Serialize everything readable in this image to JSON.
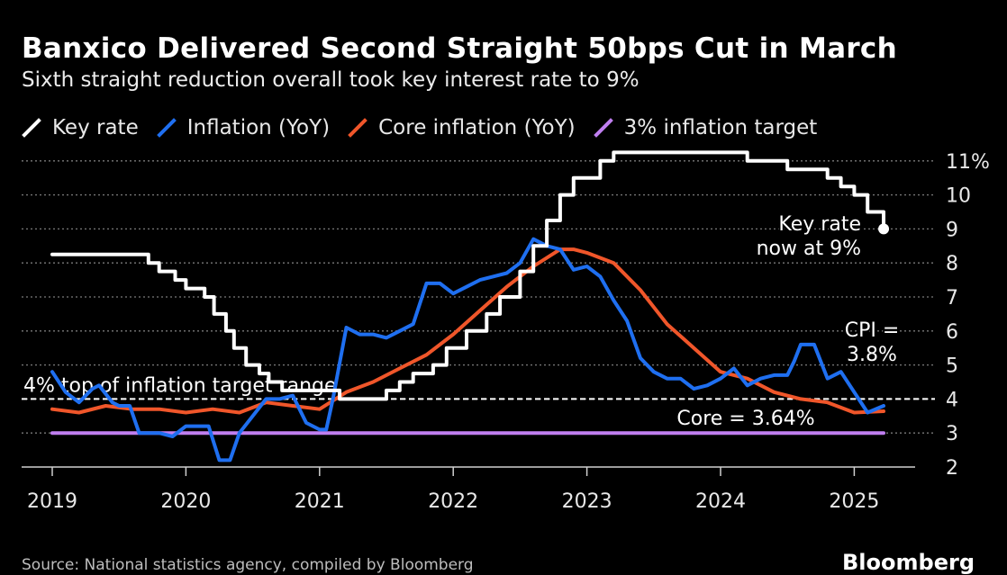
{
  "header": {
    "title": "Banxico Delivered Second Straight 50bps Cut in March",
    "subtitle": "Sixth straight reduction overall took key interest rate to 9%"
  },
  "legend": [
    {
      "label": "Key rate",
      "color": "#ffffff"
    },
    {
      "label": "Inflation (YoY)",
      "color": "#1f6ff0"
    },
    {
      "label": "Core inflation (YoY)",
      "color": "#f0562a"
    },
    {
      "label": "3% inflation target",
      "color": "#c07ff0"
    }
  ],
  "footer": {
    "source": "Source: National statistics agency, compiled by Bloomberg",
    "brand": "Bloomberg"
  },
  "chart_data": {
    "type": "line",
    "title": "Banxico Delivered Second Straight 50bps Cut in March",
    "subtitle": "Sixth straight reduction overall took key interest rate to 9%",
    "xlabel": "",
    "ylabel": "",
    "xlim": [
      2019.0,
      2025.25
    ],
    "ylim": [
      2,
      11
    ],
    "x_ticks": [
      2019,
      2020,
      2021,
      2022,
      2023,
      2024,
      2025
    ],
    "x_tick_labels": [
      "2019",
      "2020",
      "2021",
      "2022",
      "2023",
      "2024",
      "2025"
    ],
    "y_ticks": [
      2,
      3,
      4,
      5,
      6,
      7,
      8,
      9,
      10,
      11
    ],
    "y_tick_labels": [
      "2",
      "3",
      "4",
      "5",
      "6",
      "7",
      "8",
      "9",
      "10",
      "11%"
    ],
    "grid": true,
    "legend_position": "top-left",
    "series": [
      {
        "name": "Key rate",
        "color": "#ffffff",
        "step": true,
        "x": [
          2019.0,
          2019.6,
          2019.72,
          2019.8,
          2019.92,
          2020.0,
          2020.14,
          2020.21,
          2020.3,
          2020.36,
          2020.45,
          2020.55,
          2020.62,
          2020.72,
          2020.8,
          2020.9,
          2021.15,
          2021.5,
          2021.6,
          2021.7,
          2021.85,
          2021.95,
          2022.1,
          2022.25,
          2022.35,
          2022.5,
          2022.6,
          2022.7,
          2022.8,
          2022.9,
          2023.1,
          2023.2,
          2024.2,
          2024.5,
          2024.8,
          2024.9,
          2025.0,
          2025.1,
          2025.22
        ],
        "y": [
          8.25,
          8.25,
          8.0,
          7.75,
          7.5,
          7.25,
          7.0,
          6.5,
          6.0,
          5.5,
          5.0,
          4.75,
          4.5,
          4.25,
          4.25,
          4.25,
          4.0,
          4.25,
          4.5,
          4.75,
          5.0,
          5.5,
          6.0,
          6.5,
          7.0,
          7.75,
          8.5,
          9.25,
          10.0,
          10.5,
          11.0,
          11.25,
          11.0,
          10.75,
          10.5,
          10.25,
          10.0,
          9.5,
          9.0
        ]
      },
      {
        "name": "Inflation (YoY)",
        "color": "#1f6ff0",
        "x": [
          2019.0,
          2019.1,
          2019.2,
          2019.3,
          2019.35,
          2019.45,
          2019.5,
          2019.58,
          2019.65,
          2019.7,
          2019.8,
          2019.9,
          2020.0,
          2020.08,
          2020.17,
          2020.25,
          2020.33,
          2020.4,
          2020.5,
          2020.6,
          2020.7,
          2020.8,
          2020.9,
          2021.0,
          2021.05,
          2021.1,
          2021.2,
          2021.3,
          2021.4,
          2021.5,
          2021.6,
          2021.7,
          2021.8,
          2021.9,
          2022.0,
          2022.1,
          2022.2,
          2022.3,
          2022.4,
          2022.5,
          2022.6,
          2022.7,
          2022.8,
          2022.9,
          2023.0,
          2023.1,
          2023.2,
          2023.3,
          2023.4,
          2023.5,
          2023.6,
          2023.7,
          2023.8,
          2023.9,
          2024.0,
          2024.1,
          2024.2,
          2024.3,
          2024.4,
          2024.5,
          2024.55,
          2024.6,
          2024.7,
          2024.8,
          2024.9,
          2025.0,
          2025.1,
          2025.22
        ],
        "y": [
          4.8,
          4.2,
          3.9,
          4.3,
          4.4,
          3.9,
          3.8,
          3.8,
          3.0,
          3.0,
          3.0,
          2.9,
          3.2,
          3.2,
          3.2,
          2.2,
          2.2,
          3.0,
          3.5,
          4.0,
          4.0,
          4.1,
          3.3,
          3.1,
          3.1,
          4.0,
          6.1,
          5.9,
          5.9,
          5.8,
          6.0,
          6.2,
          7.4,
          7.4,
          7.1,
          7.3,
          7.5,
          7.6,
          7.7,
          8.0,
          8.7,
          8.5,
          8.4,
          7.8,
          7.9,
          7.6,
          6.9,
          6.3,
          5.2,
          4.8,
          4.6,
          4.6,
          4.3,
          4.4,
          4.6,
          4.9,
          4.4,
          4.6,
          4.7,
          4.7,
          5.1,
          5.6,
          5.6,
          4.6,
          4.8,
          4.2,
          3.6,
          3.8
        ]
      },
      {
        "name": "Core inflation (YoY)",
        "color": "#f0562a",
        "x": [
          2019.0,
          2019.2,
          2019.4,
          2019.6,
          2019.8,
          2020.0,
          2020.2,
          2020.4,
          2020.6,
          2020.8,
          2021.0,
          2021.2,
          2021.4,
          2021.6,
          2021.8,
          2022.0,
          2022.2,
          2022.4,
          2022.6,
          2022.8,
          2022.9,
          2023.0,
          2023.2,
          2023.4,
          2023.6,
          2023.8,
          2024.0,
          2024.2,
          2024.4,
          2024.6,
          2024.8,
          2025.0,
          2025.22
        ],
        "y": [
          3.7,
          3.6,
          3.8,
          3.7,
          3.7,
          3.6,
          3.7,
          3.6,
          3.9,
          3.8,
          3.7,
          4.2,
          4.5,
          4.9,
          5.3,
          5.9,
          6.6,
          7.3,
          7.9,
          8.4,
          8.4,
          8.3,
          8.0,
          7.2,
          6.2,
          5.5,
          4.8,
          4.6,
          4.2,
          4.0,
          3.9,
          3.6,
          3.64
        ]
      },
      {
        "name": "3% inflation target",
        "color": "#c07ff0",
        "x": [
          2019.0,
          2025.22
        ],
        "y": [
          3.0,
          3.0
        ]
      }
    ],
    "reference_lines": [
      {
        "label": "4% top of inflation target range",
        "y": 4,
        "style": "dashed",
        "color": "#ffffff"
      }
    ],
    "annotations": [
      {
        "text_lines": [
          "Key rate",
          "now at 9%"
        ],
        "x": 2025.22,
        "y": 9.0,
        "marker": true
      },
      {
        "text_lines": [
          "CPI =",
          "3.8%"
        ],
        "x": 2025.22,
        "y": 3.8
      },
      {
        "text_lines": [
          "Core = 3.64%"
        ],
        "x": 2025.22,
        "y": 3.64
      }
    ]
  }
}
